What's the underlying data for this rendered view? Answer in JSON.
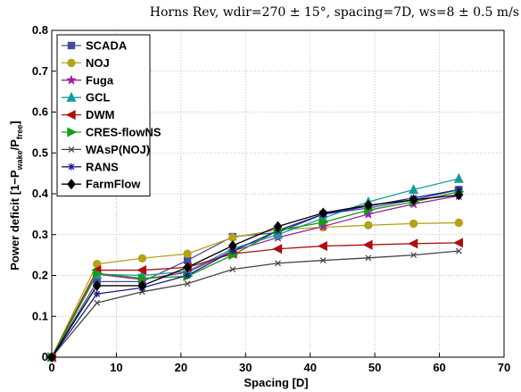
{
  "chart_data": {
    "type": "line",
    "title": "Horns Rev, wdir=270 ± 15°, spacing=7D, ws=8 ± 0.5 m/s",
    "xlabel": "Spacing [D]",
    "ylabel": "Power deficit [1−P",
    "ylabel_sub1": "wake",
    "ylabel_mid": "/P",
    "ylabel_sub2": "free",
    "ylabel_end": "]",
    "xlim": [
      0,
      70
    ],
    "ylim": [
      0,
      0.8
    ],
    "xticks": [
      0,
      10,
      20,
      30,
      40,
      50,
      60,
      70
    ],
    "yticks": [
      0,
      0.1,
      0.2,
      0.3,
      0.4,
      0.5,
      0.6,
      0.7,
      0.8
    ],
    "grid": true,
    "legend_position": "top-left",
    "x": [
      0,
      7,
      14,
      21,
      28,
      35,
      42,
      49,
      56,
      63
    ],
    "series": [
      {
        "name": "SCADA",
        "color": "#4a4a9a",
        "marker": "square",
        "values": [
          0,
          0.185,
          0.185,
          0.237,
          0.295,
          0.305,
          0.35,
          0.365,
          0.385,
          0.41
        ]
      },
      {
        "name": "NOJ",
        "color": "#b3a21b",
        "marker": "circle",
        "values": [
          0,
          0.228,
          0.242,
          0.253,
          0.293,
          0.312,
          0.318,
          0.323,
          0.327,
          0.329
        ]
      },
      {
        "name": "Fuga",
        "color": "#a020a0",
        "marker": "star",
        "values": [
          0,
          0.203,
          0.19,
          0.208,
          0.26,
          0.293,
          0.32,
          0.35,
          0.375,
          0.395
        ]
      },
      {
        "name": "GCL",
        "color": "#1a9a9a",
        "marker": "triangle-up",
        "values": [
          0,
          0.203,
          0.2,
          0.21,
          0.265,
          0.3,
          0.34,
          0.38,
          0.41,
          0.437
        ]
      },
      {
        "name": "DWM",
        "color": "#aa1111",
        "marker": "triangle-left",
        "values": [
          0,
          0.213,
          0.213,
          0.22,
          0.253,
          0.265,
          0.272,
          0.275,
          0.278,
          0.28
        ]
      },
      {
        "name": "CRES-flowNS",
        "color": "#1a9a1a",
        "marker": "triangle-right",
        "values": [
          0,
          0.205,
          0.193,
          0.198,
          0.25,
          0.31,
          0.33,
          0.36,
          0.38,
          0.405
        ]
      },
      {
        "name": "WAsP(NOJ)",
        "color": "#444444",
        "marker": "x",
        "values": [
          0,
          0.133,
          0.16,
          0.18,
          0.215,
          0.23,
          0.237,
          0.243,
          0.25,
          0.26
        ]
      },
      {
        "name": "RANS",
        "color": "#1a1a8a",
        "marker": "asterisk",
        "values": [
          0,
          0.155,
          0.17,
          0.2,
          0.26,
          0.31,
          0.35,
          0.37,
          0.39,
          0.41
        ]
      },
      {
        "name": "FarmFlow",
        "color": "#000000",
        "marker": "diamond",
        "values": [
          0,
          0.175,
          0.175,
          0.22,
          0.273,
          0.32,
          0.353,
          0.372,
          0.385,
          0.397
        ]
      }
    ]
  }
}
